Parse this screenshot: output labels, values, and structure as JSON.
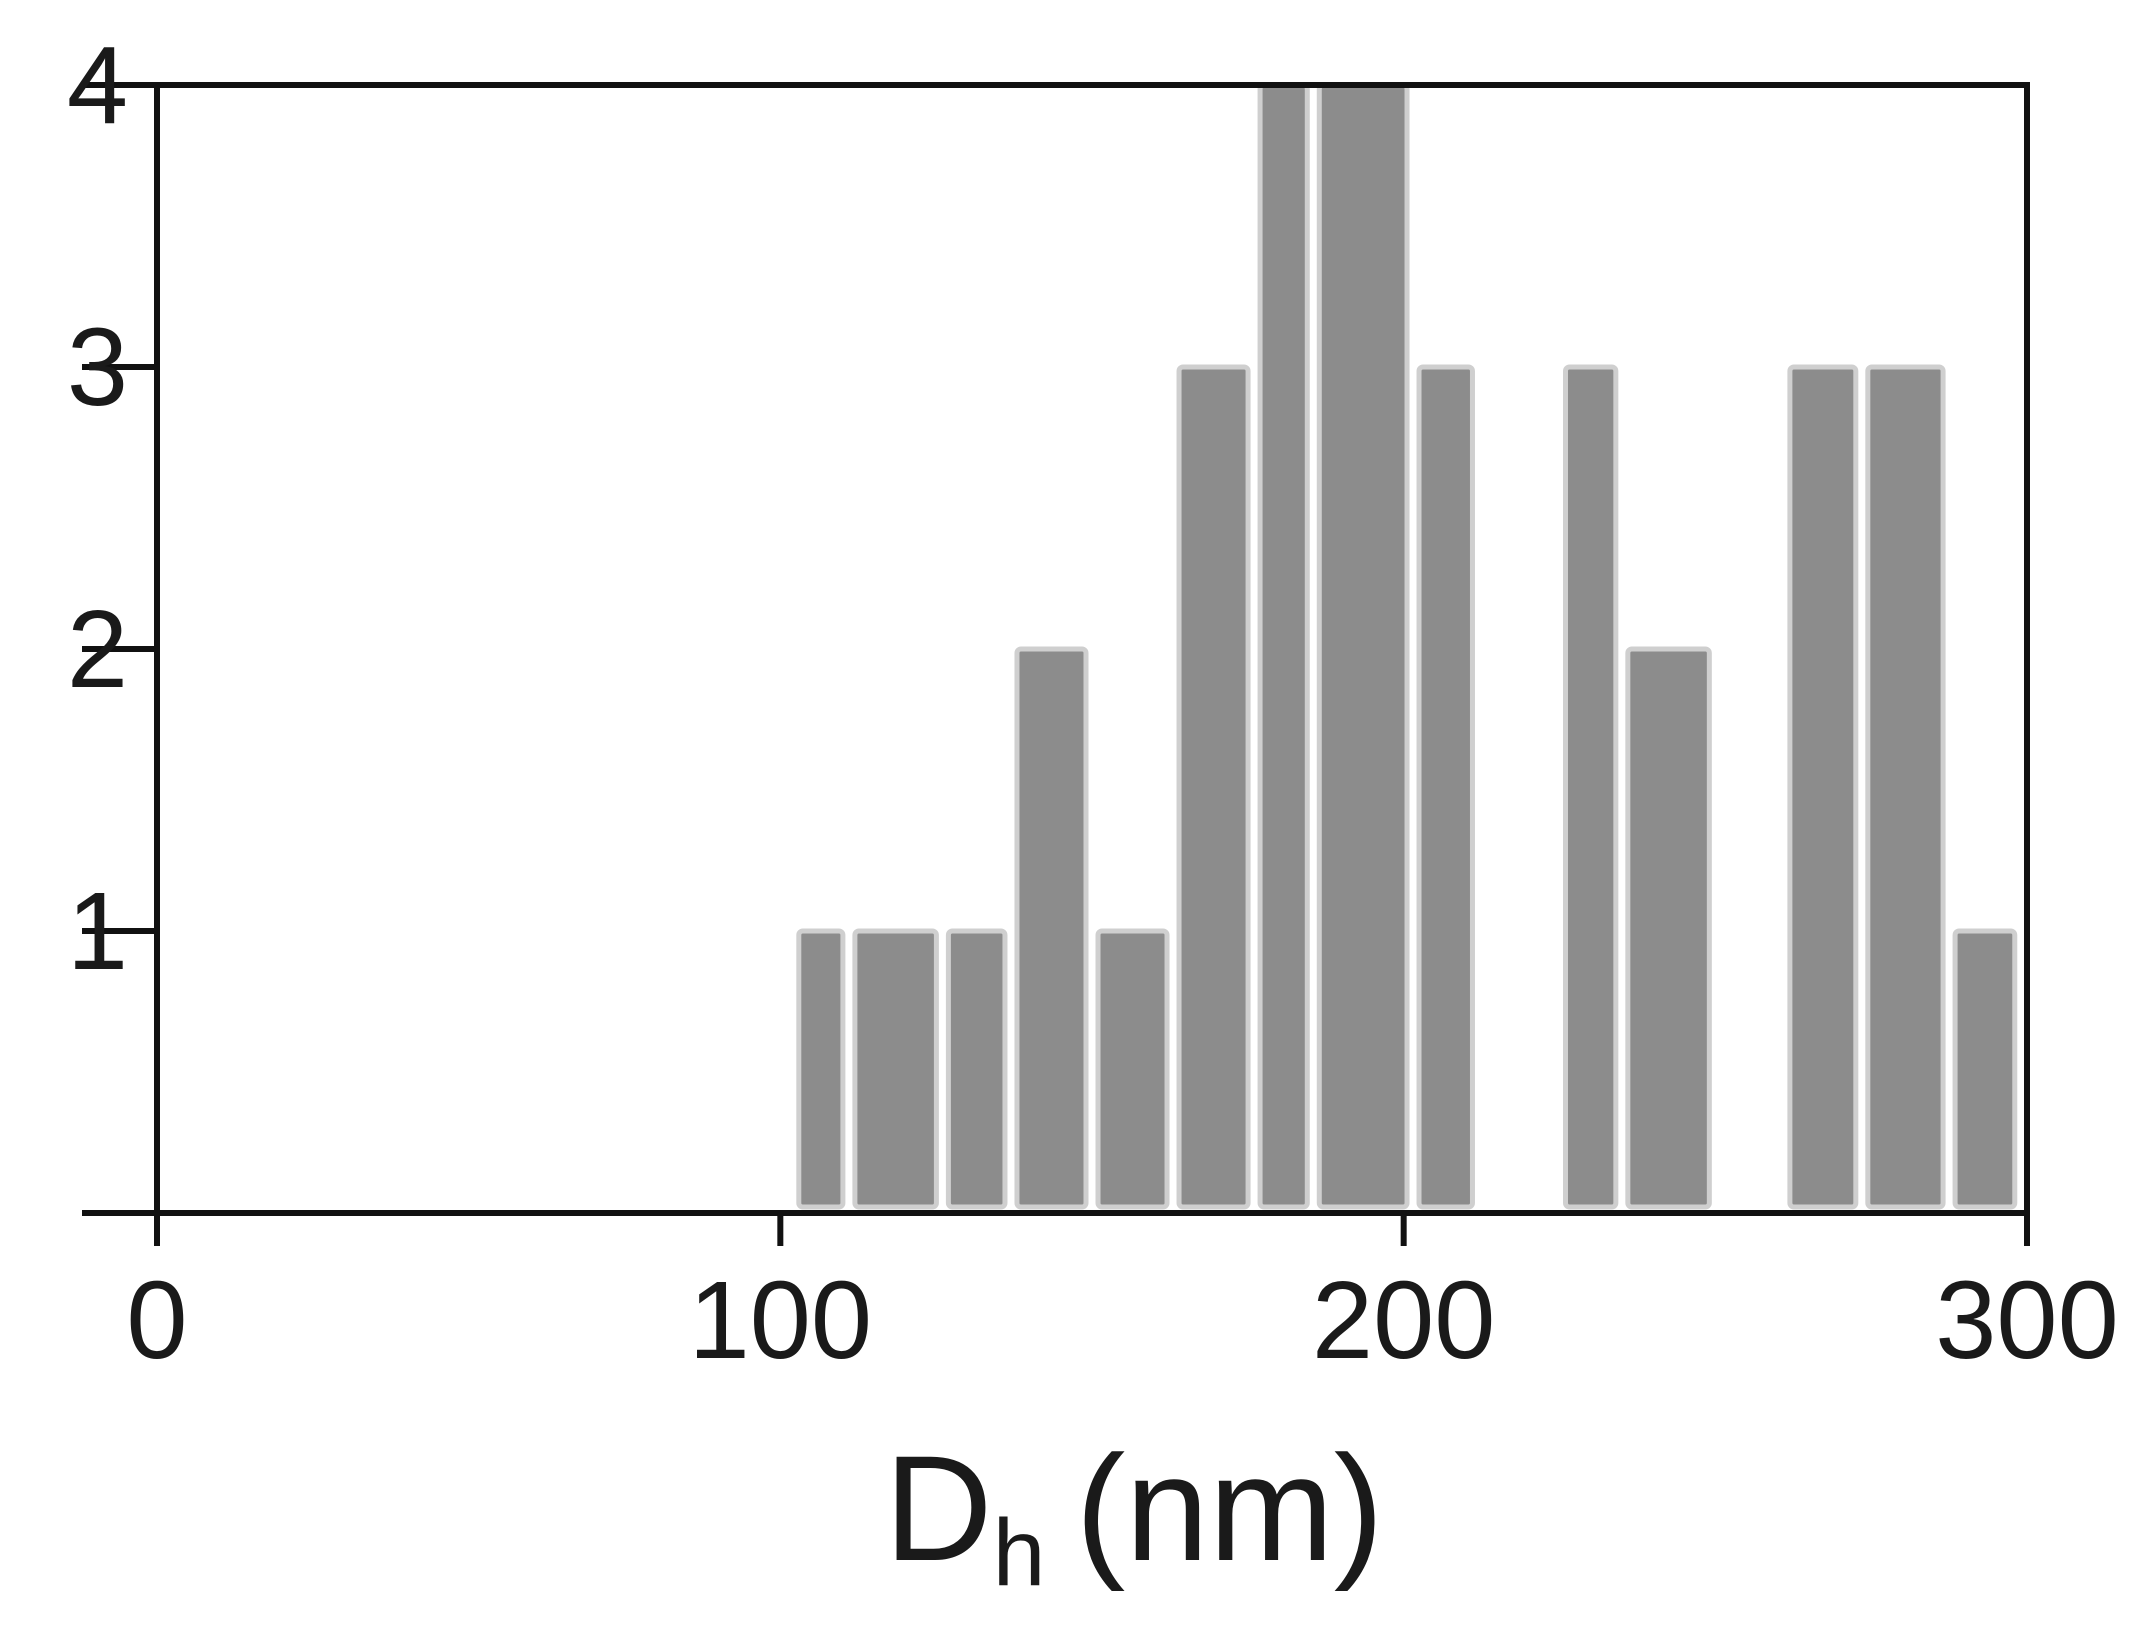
{
  "chart_data": {
    "type": "histogram",
    "bins": [
      102,
      111,
      126,
      137,
      150,
      163,
      176,
      185.5,
      201.5,
      212,
      225,
      235,
      250,
      261,
      273.5,
      287.5,
      299
    ],
    "values": [
      1,
      1,
      1,
      2,
      1,
      3,
      4,
      4,
      3,
      0,
      3,
      2,
      0,
      3,
      3,
      1
    ],
    "color": "#8c8c8c",
    "xlim": [
      0,
      300
    ],
    "xticks": [
      0,
      100,
      200,
      300
    ],
    "ylim": [
      0,
      4
    ],
    "yticks": [
      1,
      2,
      3,
      4
    ],
    "xlabel": [
      "D",
      "h",
      "(nm)"
    ]
  }
}
